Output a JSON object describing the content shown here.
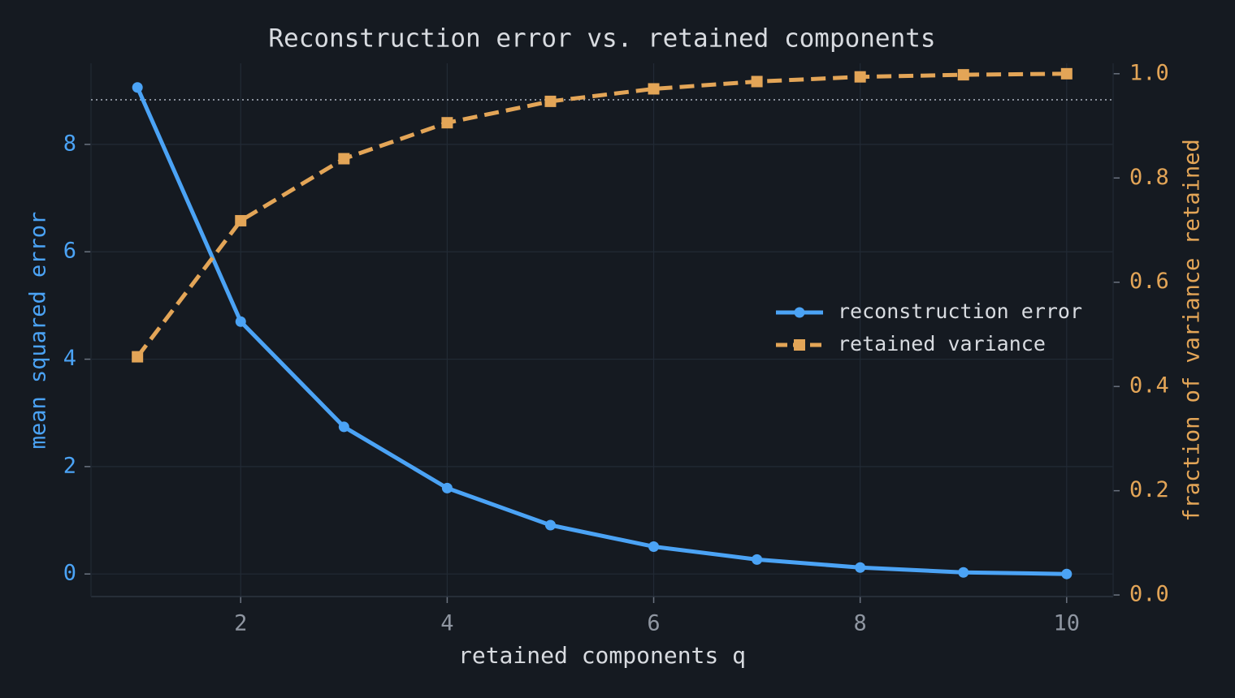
{
  "chart_data": {
    "type": "line",
    "title": "Reconstruction error vs. retained components",
    "x_label": "retained components  q",
    "y_label": "mean squared error",
    "y2_label": "fraction of variance retained",
    "x": [
      1,
      2,
      3,
      4,
      5,
      6,
      7,
      8,
      9,
      10
    ],
    "series": [
      {
        "name": "reconstruction error",
        "color": "#4ba3f5",
        "marker": "circle",
        "dash": "solid",
        "values": [
          9.06,
          4.7,
          2.74,
          1.6,
          0.91,
          0.51,
          0.27,
          0.12,
          0.03,
          0.0
        ]
      },
      {
        "name": "retained variance",
        "color": "#e3a557",
        "marker": "square",
        "dash": "dashed",
        "axis": "y2",
        "values": [
          0.457,
          0.718,
          0.837,
          0.906,
          0.947,
          0.971,
          0.985,
          0.994,
          0.998,
          1.0
        ]
      }
    ],
    "reference_line": {
      "axis": "y2",
      "value": 0.95
    },
    "xlim": [
      0.55,
      10.45
    ],
    "xticks": [
      2,
      4,
      6,
      8,
      10
    ],
    "ylim": [
      -0.42,
      9.51
    ],
    "yticks": [
      0,
      2,
      4,
      6,
      8
    ],
    "y2lim": [
      -0.003,
      1.02
    ],
    "y2ticks": [
      {
        "value": 0,
        "label": "0.0"
      },
      0.2,
      0.4,
      0.6,
      0.8,
      {
        "value": 1,
        "label": "1.0"
      }
    ],
    "grid": true,
    "legend_position": "center right"
  }
}
